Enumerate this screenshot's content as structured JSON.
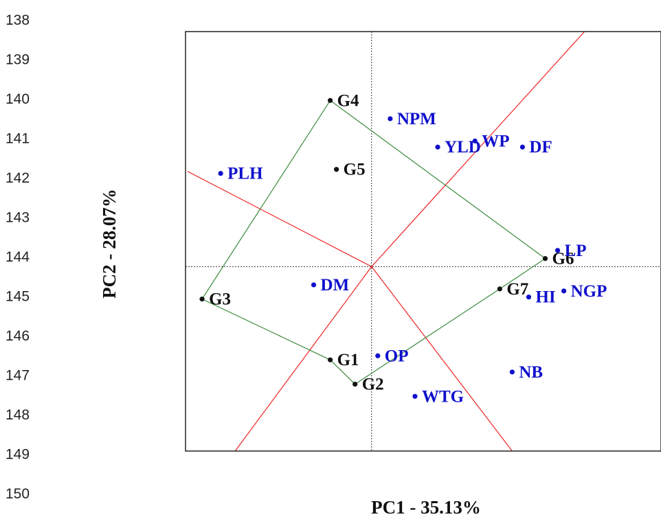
{
  "line_numbers": [
    "138",
    "139",
    "140",
    "141",
    "142",
    "143",
    "144",
    "145",
    "146",
    "147",
    "148",
    "149",
    "150"
  ],
  "chart_data": {
    "type": "scatter",
    "title": "",
    "xlabel": "PC1 - 35.13%",
    "ylabel": "PC2 - 28.07%",
    "genotypes": [
      {
        "label": "G1",
        "x": -1.0,
        "y": -2.3
      },
      {
        "label": "G2",
        "x": -0.4,
        "y": -2.9
      },
      {
        "label": "G3",
        "x": -4.1,
        "y": -0.8
      },
      {
        "label": "G4",
        "x": -1.0,
        "y": 4.1
      },
      {
        "label": "G5",
        "x": -0.85,
        "y": 2.4
      },
      {
        "label": "G6",
        "x": 4.2,
        "y": 0.2
      },
      {
        "label": "G7",
        "x": 3.1,
        "y": -0.55
      }
    ],
    "traits": [
      {
        "label": "NPM",
        "x": 0.45,
        "y": 3.65
      },
      {
        "label": "YLD",
        "x": 1.6,
        "y": 2.95
      },
      {
        "label": "WP",
        "x": 2.5,
        "y": 3.1
      },
      {
        "label": "DF",
        "x": 3.65,
        "y": 2.95
      },
      {
        "label": "PLH",
        "x": -3.65,
        "y": 2.3
      },
      {
        "label": "LP",
        "x": 4.5,
        "y": 0.4
      },
      {
        "label": "DM",
        "x": -1.4,
        "y": -0.45
      },
      {
        "label": "HI",
        "x": 3.8,
        "y": -0.75
      },
      {
        "label": "NGP",
        "x": 4.65,
        "y": -0.6
      },
      {
        "label": "OP",
        "x": 0.15,
        "y": -2.2
      },
      {
        "label": "NB",
        "x": 3.4,
        "y": -2.6
      },
      {
        "label": "WTG",
        "x": 1.05,
        "y": -3.2
      }
    ],
    "polygon_order": [
      "G4",
      "G6",
      "G7",
      "G2",
      "G1",
      "G3"
    ],
    "sector_rays": [
      {
        "x2": 5.15,
        "y2": 5.8
      },
      {
        "x2": -4.45,
        "y2": 2.35
      },
      {
        "x2": -3.3,
        "y2": -4.55
      },
      {
        "x2": 3.4,
        "y2": -4.55
      }
    ],
    "xlim": [
      -4.5,
      7.0
    ],
    "ylim": [
      -4.55,
      5.8
    ],
    "origin_lines": "dotted",
    "grid": false,
    "colors": {
      "genotype": "#111111",
      "trait": "#1010cc",
      "polygon": "#3a8a3a",
      "rays": "#ee2222",
      "origin": "#333333"
    }
  }
}
